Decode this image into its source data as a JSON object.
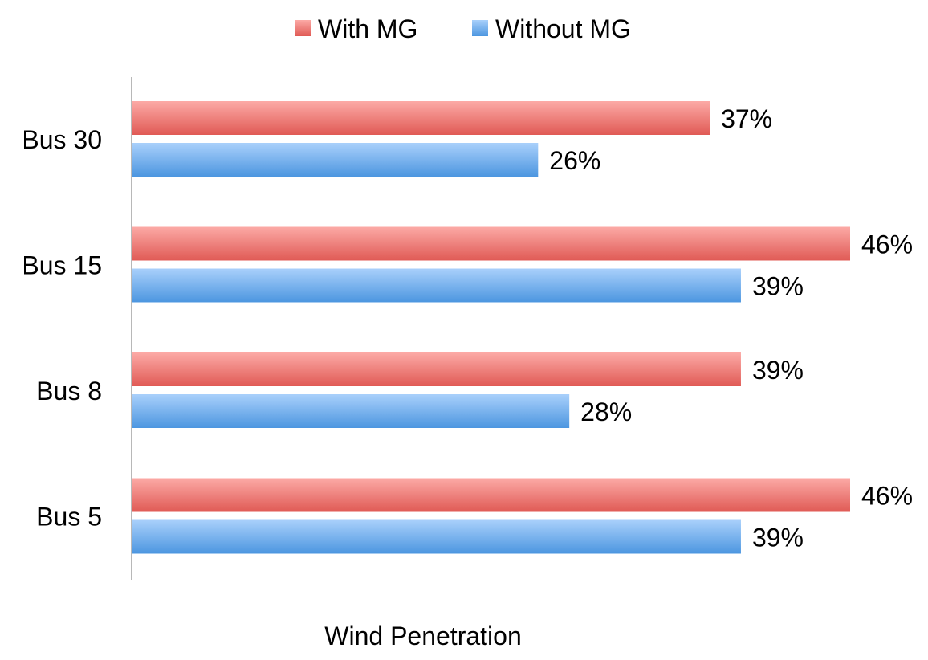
{
  "chart_data": {
    "type": "bar",
    "orientation": "horizontal",
    "title": "",
    "xlabel": "Wind Penetration",
    "ylabel": "",
    "categories": [
      "Bus 30",
      "Bus 15",
      "Bus 8",
      "Bus 5"
    ],
    "series": [
      {
        "name": "With MG",
        "values": [
          37,
          46,
          39,
          46
        ],
        "labels": [
          "37%",
          "46%",
          "39%",
          "46%"
        ],
        "color": "#e05a55",
        "color_light": "#fcaaa6"
      },
      {
        "name": "Without MG",
        "values": [
          26,
          39,
          28,
          39
        ],
        "labels": [
          "26%",
          "39%",
          "28%",
          "39%"
        ],
        "color": "#4c96e0",
        "color_light": "#a9d0fb"
      }
    ],
    "xlim": [
      0,
      46
    ],
    "grid": false,
    "legend": "top-center",
    "axis_color": "#a0a0a0"
  }
}
